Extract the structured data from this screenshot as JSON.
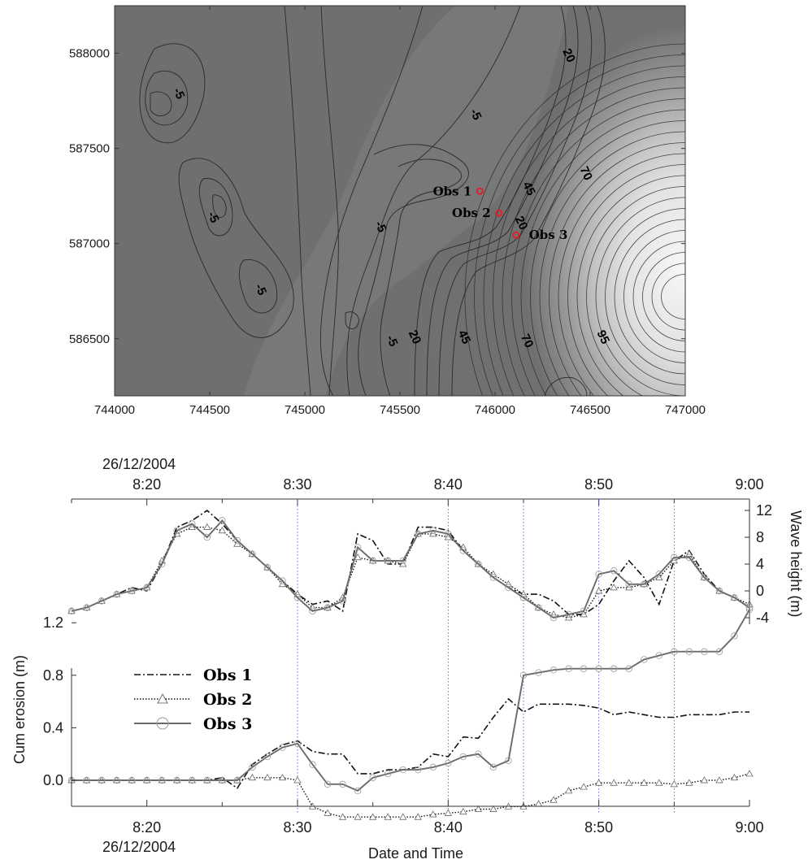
{
  "chart_data": [
    {
      "type": "contour",
      "xlim": [
        744000,
        747000
      ],
      "ylim": [
        586200,
        588250
      ],
      "x_ticks": [
        "744000",
        "744500",
        "745000",
        "745500",
        "746000",
        "746500",
        "747000"
      ],
      "y_ticks": [
        "586500",
        "587000",
        "587500",
        "588000"
      ],
      "contour_labels": [
        {
          "text": "-5",
          "x": 744320,
          "y": 587780
        },
        {
          "text": "-5",
          "x": 744500,
          "y": 587130
        },
        {
          "text": "-5",
          "x": 744750,
          "y": 586750
        },
        {
          "text": "-5",
          "x": 745380,
          "y": 587080
        },
        {
          "text": "-5",
          "x": 745440,
          "y": 586480
        },
        {
          "text": "-5",
          "x": 745880,
          "y": 587670
        },
        {
          "text": "20",
          "x": 745560,
          "y": 586500
        },
        {
          "text": "45",
          "x": 745820,
          "y": 586500
        },
        {
          "text": "70",
          "x": 746150,
          "y": 586480
        },
        {
          "text": "95",
          "x": 746550,
          "y": 586500
        },
        {
          "text": "70",
          "x": 746460,
          "y": 587360
        },
        {
          "text": "45",
          "x": 746160,
          "y": 587280
        },
        {
          "text": "20",
          "x": 746120,
          "y": 587100
        },
        {
          "text": "20",
          "x": 746370,
          "y": 587980
        }
      ],
      "observation_points": [
        {
          "name": "Obs 1",
          "x": 745920,
          "y": 587275
        },
        {
          "name": "Obs 2",
          "x": 746020,
          "y": 587160
        },
        {
          "name": "Obs 3",
          "x": 746110,
          "y": 587045
        }
      ],
      "colors": {
        "deep": "#6e6e6e",
        "shallow": "#f5f5f5",
        "line": "#2a2a2a",
        "obs": "#e0202a"
      }
    },
    {
      "type": "line",
      "date_label": "26/12/2004",
      "x_tick_labels": [
        "8:20",
        "8:30",
        "8:40",
        "8:50",
        "9:00"
      ],
      "x_range_minutes": [
        8.25,
        9.0
      ],
      "ylabel": "Wave height (m)",
      "ylim": [
        -4,
        12
      ],
      "y_ticks": [
        "-4",
        "0",
        "4",
        "8",
        "12"
      ],
      "gridlines_at": [
        "8:30",
        "8:40",
        "8:45",
        "8:50",
        "8:55"
      ],
      "x": [
        "8:15",
        "8:16",
        "8:17",
        "8:18",
        "8:19",
        "8:20",
        "8:21",
        "8:22",
        "8:23",
        "8:24",
        "8:25",
        "8:26",
        "8:27",
        "8:28",
        "8:29",
        "8:30",
        "8:31",
        "8:32",
        "8:33",
        "8:34",
        "8:35",
        "8:36",
        "8:37",
        "8:38",
        "8:39",
        "8:40",
        "8:41",
        "8:42",
        "8:43",
        "8:44",
        "8:45",
        "8:46",
        "8:47",
        "8:48",
        "8:49",
        "8:50",
        "8:51",
        "8:52",
        "8:53",
        "8:54",
        "8:55",
        "8:56",
        "8:57",
        "8:58",
        "8:59",
        "9:00"
      ],
      "series": [
        {
          "name": "Obs 1",
          "values": [
            -3.0,
            -2.5,
            -1.5,
            -0.5,
            0.5,
            0.0,
            4.0,
            9.5,
            10.5,
            12.0,
            10.0,
            7.5,
            5.5,
            3.5,
            1.5,
            -0.5,
            -2.0,
            -1.5,
            -3.0,
            8.5,
            7.5,
            4.0,
            4.0,
            9.5,
            9.5,
            9.0,
            6.0,
            4.0,
            2.0,
            0.5,
            -0.5,
            -0.5,
            -1.5,
            -3.5,
            -3.5,
            -2.0,
            1.5,
            4.5,
            2.0,
            -2.0,
            4.5,
            6.0,
            2.5,
            0.0,
            -1.0,
            -2.5
          ]
        },
        {
          "name": "Obs 2",
          "values": [
            -3.0,
            -2.5,
            -1.5,
            -0.5,
            0.0,
            0.5,
            4.5,
            8.5,
            9.5,
            9.5,
            9.0,
            7.0,
            5.5,
            3.5,
            1.0,
            -0.5,
            -2.5,
            -2.5,
            -1.0,
            5.0,
            4.5,
            4.5,
            4.0,
            8.5,
            8.5,
            8.0,
            6.5,
            4.0,
            2.5,
            1.0,
            -0.5,
            -2.5,
            -3.5,
            -4.0,
            -3.5,
            0.0,
            0.5,
            0.5,
            1.0,
            2.0,
            4.5,
            5.5,
            2.0,
            0.0,
            -1.0,
            -2.0
          ]
        },
        {
          "name": "Obs 3",
          "values": [
            -3.0,
            -2.5,
            -1.5,
            -0.5,
            0.0,
            0.5,
            4.0,
            9.0,
            10.0,
            8.0,
            10.5,
            7.5,
            5.5,
            3.5,
            1.5,
            -1.0,
            -3.0,
            -2.5,
            -1.5,
            6.5,
            4.5,
            4.5,
            4.5,
            8.5,
            9.0,
            8.5,
            6.0,
            4.0,
            2.0,
            0.5,
            -1.0,
            -2.5,
            -4.0,
            -3.5,
            -3.0,
            2.5,
            3.0,
            1.0,
            1.0,
            2.5,
            5.0,
            5.0,
            2.0,
            0.0,
            -1.0,
            -2.5
          ]
        }
      ]
    },
    {
      "type": "line",
      "title": "",
      "xlabel": "Date and Time",
      "date_label": "26/12/2004",
      "ylabel": "Cum erosion (m)",
      "ylim": [
        -0.35,
        1.4
      ],
      "y_ticks": [
        "0.0",
        "0.4",
        "0.8",
        "1.2"
      ],
      "x_tick_labels": [
        "8:20",
        "8:30",
        "8:40",
        "8:50",
        "9:00"
      ],
      "legend": {
        "position": "top-left",
        "entries": [
          "Obs 1",
          "Obs 2",
          "Obs 3"
        ]
      },
      "x": [
        "8:15",
        "8:16",
        "8:17",
        "8:18",
        "8:19",
        "8:20",
        "8:21",
        "8:22",
        "8:23",
        "8:24",
        "8:25",
        "8:26",
        "8:27",
        "8:28",
        "8:29",
        "8:30",
        "8:31",
        "8:32",
        "8:33",
        "8:34",
        "8:35",
        "8:36",
        "8:37",
        "8:38",
        "8:39",
        "8:40",
        "8:41",
        "8:42",
        "8:43",
        "8:44",
        "8:45",
        "8:46",
        "8:47",
        "8:48",
        "8:49",
        "8:50",
        "8:51",
        "8:52",
        "8:53",
        "8:54",
        "8:55",
        "8:56",
        "8:57",
        "8:58",
        "8:59",
        "9:00"
      ],
      "series": [
        {
          "name": "Obs 1",
          "values": [
            0.0,
            0.0,
            0.0,
            0.0,
            0.0,
            0.0,
            0.0,
            0.0,
            0.0,
            0.0,
            0.02,
            -0.06,
            0.12,
            0.2,
            0.27,
            0.3,
            0.22,
            0.2,
            0.2,
            0.05,
            0.05,
            0.08,
            0.08,
            0.1,
            0.2,
            0.18,
            0.33,
            0.32,
            0.48,
            0.62,
            0.52,
            0.58,
            0.58,
            0.58,
            0.57,
            0.55,
            0.5,
            0.52,
            0.5,
            0.48,
            0.48,
            0.5,
            0.5,
            0.5,
            0.52,
            0.52
          ]
        },
        {
          "name": "Obs 2",
          "values": [
            0.0,
            0.0,
            0.0,
            0.0,
            0.0,
            0.0,
            0.0,
            0.0,
            0.0,
            0.0,
            0.0,
            0.0,
            0.02,
            0.02,
            0.02,
            0.0,
            -0.2,
            -0.25,
            -0.28,
            -0.28,
            -0.28,
            -0.28,
            -0.28,
            -0.28,
            -0.26,
            -0.25,
            -0.24,
            -0.22,
            -0.22,
            -0.2,
            -0.2,
            -0.18,
            -0.15,
            -0.08,
            -0.05,
            -0.02,
            -0.02,
            -0.02,
            -0.02,
            -0.02,
            -0.03,
            -0.02,
            0.0,
            0.0,
            0.02,
            0.05
          ]
        },
        {
          "name": "Obs 3",
          "values": [
            0.0,
            0.0,
            0.0,
            0.0,
            0.0,
            0.0,
            0.0,
            0.0,
            0.0,
            0.0,
            0.0,
            0.0,
            0.1,
            0.18,
            0.25,
            0.28,
            0.12,
            -0.03,
            -0.03,
            -0.08,
            0.02,
            0.05,
            0.08,
            0.08,
            0.1,
            0.13,
            0.18,
            0.2,
            0.1,
            0.15,
            0.8,
            0.82,
            0.84,
            0.85,
            0.85,
            0.85,
            0.85,
            0.85,
            0.92,
            0.95,
            0.98,
            0.98,
            0.98,
            0.98,
            1.1,
            1.3
          ]
        }
      ]
    }
  ]
}
